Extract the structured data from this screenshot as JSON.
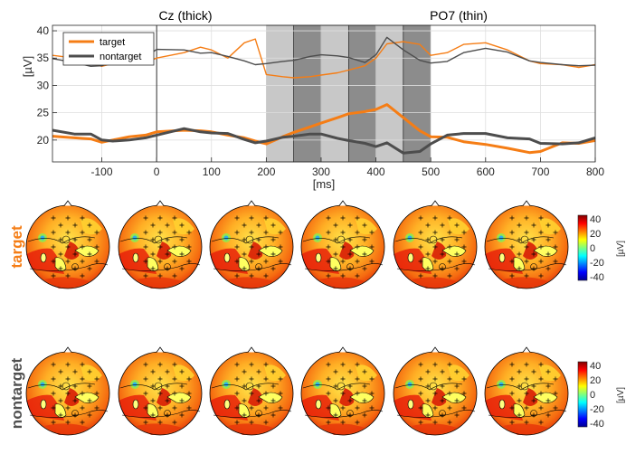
{
  "chart_data": [
    {
      "type": "line",
      "titles": [
        "Cz (thick)",
        "PO7 (thin)"
      ],
      "xlabel": "[ms]",
      "ylabel": "[µV]",
      "xlim": [
        -190,
        800
      ],
      "ylim": [
        16,
        41
      ],
      "xticks": [
        -100,
        0,
        100,
        200,
        300,
        400,
        500,
        600,
        700,
        800
      ],
      "xtick_labels": [
        "-100",
        "0",
        "100",
        "200",
        "300",
        "400",
        "500",
        "600",
        "700",
        "800"
      ],
      "yticks": [
        20,
        25,
        30,
        35,
        40
      ],
      "ytick_labels": [
        "20",
        "25",
        "30",
        "35",
        "40"
      ],
      "grid": true,
      "legend": "top-left",
      "colors": {
        "target": "#f57d15",
        "nontarget": "#4d4d4d"
      },
      "shaded_intervals": [
        {
          "start": 200,
          "end": 250,
          "color": "#c8c8c8"
        },
        {
          "start": 250,
          "end": 300,
          "color": "#8c8c8c"
        },
        {
          "start": 300,
          "end": 350,
          "color": "#c8c8c8"
        },
        {
          "start": 350,
          "end": 400,
          "color": "#8c8c8c"
        },
        {
          "start": 400,
          "end": 450,
          "color": "#c8c8c8"
        },
        {
          "start": 450,
          "end": 500,
          "color": "#8c8c8c"
        }
      ],
      "x": [
        -190,
        -150,
        -120,
        -100,
        -80,
        -50,
        -20,
        0,
        50,
        80,
        100,
        130,
        160,
        180,
        200,
        230,
        250,
        280,
        300,
        330,
        350,
        380,
        400,
        420,
        450,
        480,
        500,
        530,
        560,
        600,
        640,
        680,
        700,
        740,
        770,
        800
      ],
      "series": [
        {
          "name": "target",
          "channel": "Cz",
          "linewidth": "thick",
          "values": [
            20.7,
            20.4,
            20.2,
            19.6,
            20.0,
            20.6,
            20.9,
            21.5,
            21.8,
            21.7,
            21.5,
            20.9,
            20.4,
            19.8,
            19.3,
            20.6,
            21.4,
            22.4,
            23.1,
            24.1,
            24.8,
            25.2,
            25.6,
            26.5,
            24.1,
            21.7,
            20.6,
            20.5,
            19.7,
            19.2,
            18.5,
            17.7,
            17.9,
            19.5,
            19.4,
            19.9
          ]
        },
        {
          "name": "nontarget",
          "channel": "Cz",
          "linewidth": "thick",
          "values": [
            21.8,
            21.1,
            21.1,
            20.0,
            19.8,
            20.0,
            20.4,
            20.9,
            22.1,
            21.5,
            21.3,
            21.2,
            20.1,
            19.5,
            19.8,
            20.5,
            20.7,
            21.1,
            21.1,
            20.3,
            19.9,
            19.4,
            18.8,
            19.5,
            17.6,
            17.9,
            19.3,
            20.9,
            21.2,
            21.2,
            20.4,
            20.2,
            19.4,
            19.3,
            19.5,
            20.4
          ]
        },
        {
          "name": "target",
          "channel": "PO7",
          "linewidth": "thin",
          "values": [
            35.5,
            35.0,
            34.0,
            33.5,
            34.0,
            34.0,
            34.2,
            35.0,
            36.0,
            37.0,
            36.5,
            35.0,
            37.8,
            38.5,
            32.0,
            31.6,
            31.4,
            31.6,
            31.9,
            32.3,
            32.8,
            33.6,
            35.0,
            37.6,
            38.0,
            37.5,
            35.5,
            36.0,
            37.5,
            37.8,
            36.5,
            34.5,
            34.0,
            33.8,
            33.3,
            33.8
          ]
        },
        {
          "name": "nontarget",
          "channel": "PO7",
          "linewidth": "thin",
          "values": [
            34.9,
            34.2,
            33.5,
            33.6,
            34.3,
            34.6,
            35.2,
            36.6,
            36.5,
            35.9,
            36.0,
            35.3,
            34.5,
            33.8,
            34.0,
            34.4,
            34.6,
            35.3,
            35.6,
            35.4,
            35.1,
            34.2,
            35.6,
            38.8,
            36.5,
            34.6,
            34.1,
            34.4,
            36.0,
            36.8,
            36.1,
            34.5,
            34.2,
            33.8,
            33.6,
            33.7
          ]
        }
      ],
      "legend_entries": [
        "target",
        "nontarget"
      ]
    },
    {
      "type": "heatmap",
      "subtype": "topographic scalp maps",
      "rows": [
        {
          "label": "target",
          "color": "#f57d15"
        },
        {
          "label": "nontarget",
          "color": "#505050"
        }
      ],
      "maps_per_row": 6,
      "colorbar": {
        "ticks": [
          40,
          20,
          0,
          -20,
          -40
        ],
        "tick_labels": [
          "40",
          "20",
          "0",
          "-20",
          "-40"
        ],
        "unit": "[µV]",
        "range": [
          -45,
          45
        ]
      }
    }
  ]
}
